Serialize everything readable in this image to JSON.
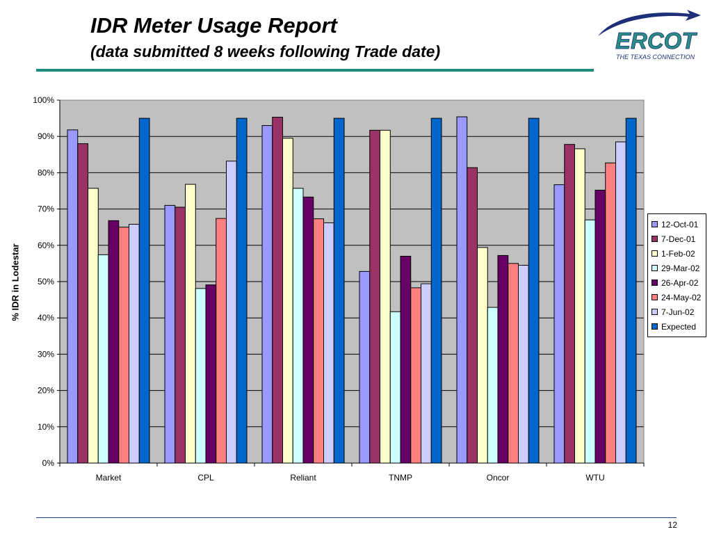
{
  "header": {
    "title": "IDR Meter Usage Report",
    "subtitle": "(data submitted 8 weeks following Trade date)"
  },
  "logo": {
    "name": "ERCOT",
    "tagline": "THE TEXAS CONNECTION",
    "colors": {
      "navy": "#1c2f78",
      "teal": "#2a8f85"
    }
  },
  "footer": {
    "page_number": "12"
  },
  "chart_data": {
    "type": "bar",
    "title": "",
    "xlabel": "",
    "ylabel": "% IDR in Lodestar",
    "ylim": [
      0,
      100
    ],
    "yticks": [
      "0%",
      "10%",
      "20%",
      "30%",
      "40%",
      "50%",
      "60%",
      "70%",
      "80%",
      "90%",
      "100%"
    ],
    "grid": true,
    "plot_background": "#c0c0c0",
    "legend_position": "right",
    "categories": [
      "Market",
      "CPL",
      "Reliant",
      "TNMP",
      "Oncor",
      "WTU"
    ],
    "series": [
      {
        "name": "12-Oct-01",
        "color": "#9999ff",
        "values": [
          91.8,
          71.0,
          93.0,
          52.8,
          95.4,
          76.7
        ]
      },
      {
        "name": "7-Dec-01",
        "color": "#993366",
        "values": [
          88.0,
          70.5,
          95.3,
          91.7,
          81.4,
          87.8
        ]
      },
      {
        "name": "1-Feb-02",
        "color": "#ffffcc",
        "values": [
          75.7,
          76.8,
          89.5,
          91.7,
          59.4,
          86.6
        ]
      },
      {
        "name": "29-Mar-02",
        "color": "#ccffff",
        "values": [
          57.4,
          48.1,
          75.7,
          41.7,
          42.9,
          67.0
        ]
      },
      {
        "name": "26-Apr-02",
        "color": "#660066",
        "values": [
          66.8,
          49.1,
          73.3,
          57.0,
          57.2,
          75.2
        ]
      },
      {
        "name": "24-May-02",
        "color": "#ff8080",
        "values": [
          65.0,
          67.4,
          67.3,
          48.3,
          55.0,
          82.7
        ]
      },
      {
        "name": "7-Jun-02",
        "color": "#ccccff",
        "values": [
          65.8,
          83.2,
          66.2,
          49.4,
          54.5,
          88.5
        ]
      },
      {
        "name": "Expected",
        "color": "#0066cc",
        "values": [
          95,
          95,
          95,
          95,
          95,
          95
        ]
      }
    ]
  }
}
